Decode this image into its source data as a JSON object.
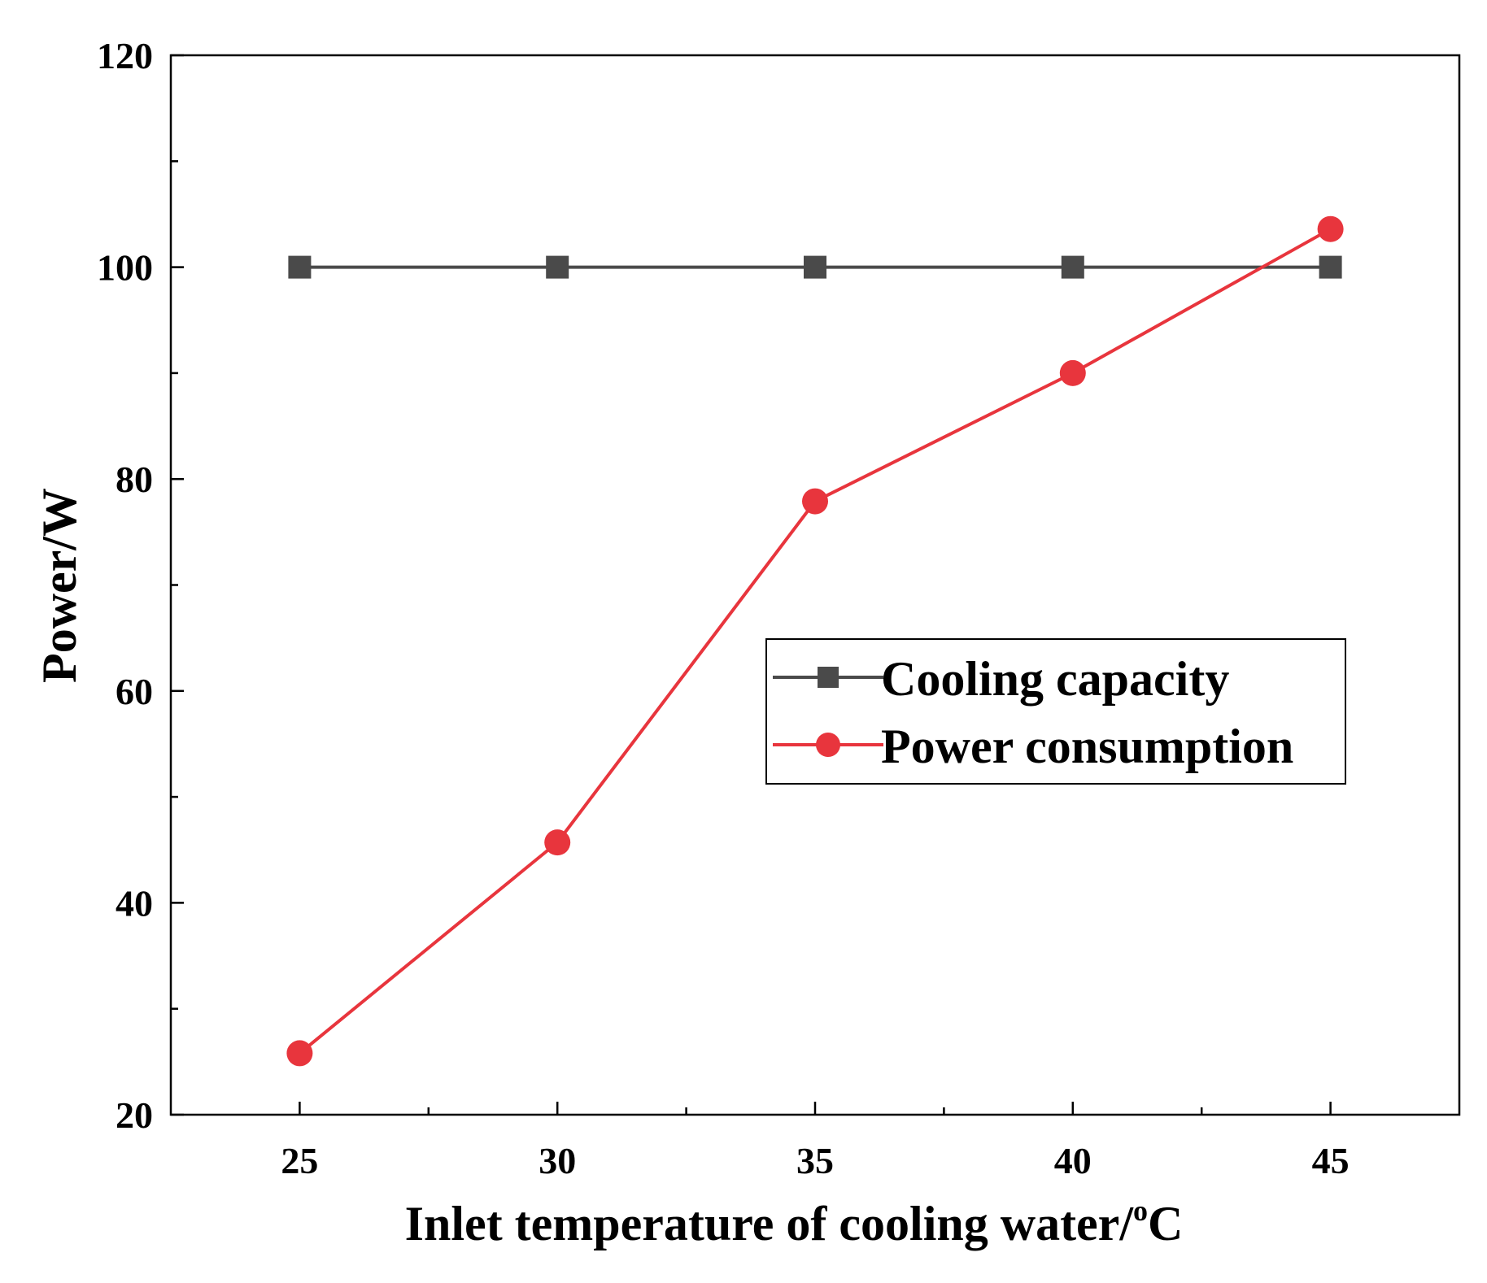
{
  "chart_data": {
    "type": "line",
    "title": "",
    "xlabel": "Inlet temperature of cooling water/",
    "xlabel_unit_sup": "o",
    "xlabel_unit": "C",
    "ylabel": "Power/W",
    "x": [
      25,
      30,
      35,
      40,
      45
    ],
    "xlim": [
      22.5,
      47.5
    ],
    "ylim": [
      20,
      120
    ],
    "xticks": [
      25,
      30,
      35,
      40,
      45
    ],
    "yticks": [
      20,
      40,
      60,
      80,
      100,
      120
    ],
    "grid": false,
    "legend_position": "center-right",
    "series": [
      {
        "name": "Cooling capacity",
        "values": [
          100,
          100,
          100,
          100,
          100
        ],
        "color": "#4a4a4a",
        "marker": "square"
      },
      {
        "name": "Power consumption",
        "values": [
          25.8,
          45.7,
          77.9,
          90.0,
          103.6
        ],
        "color": "#e8353d",
        "marker": "circle"
      }
    ]
  }
}
